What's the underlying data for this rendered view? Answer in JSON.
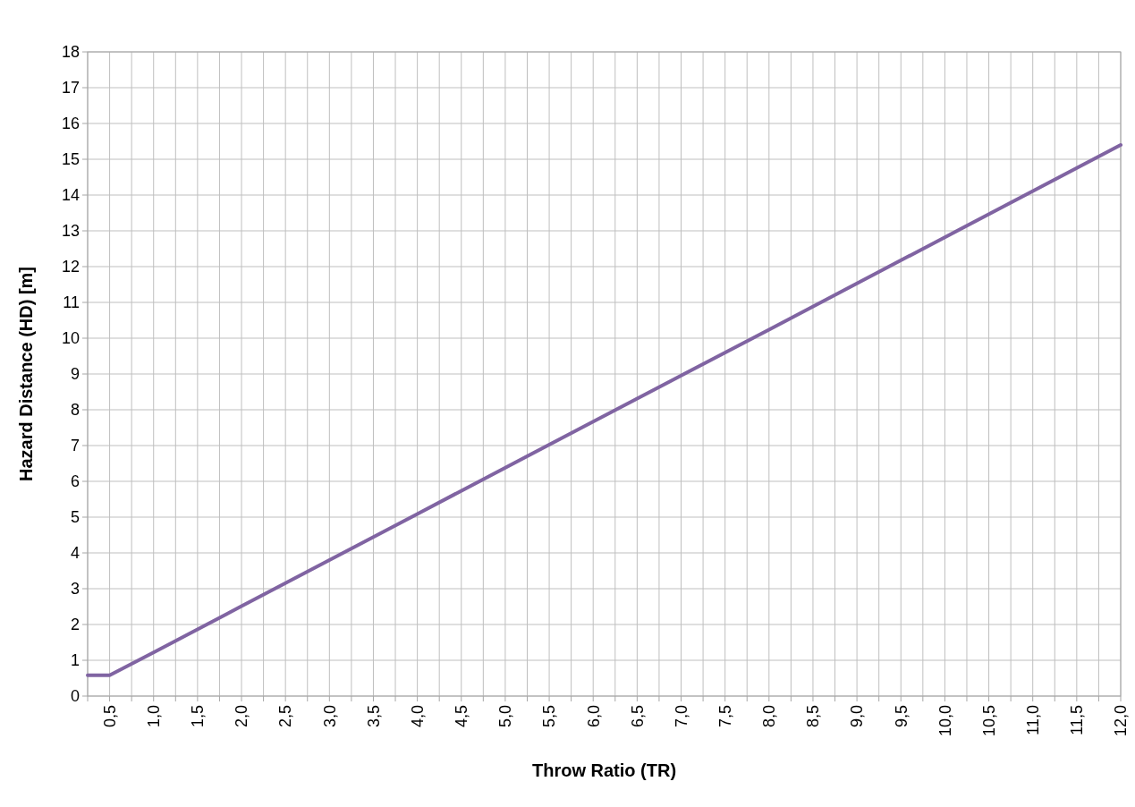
{
  "chart_data": {
    "type": "line",
    "xlabel": "Throw Ratio (TR)",
    "ylabel": "Hazard Distance (HD)  [m]",
    "x": [
      0.25,
      0.5,
      1,
      2,
      4,
      6,
      8,
      10,
      12
    ],
    "series": [
      {
        "color": "#8064a2",
        "values": [
          0.58,
          0.58,
          1.22,
          2.51,
          5.09,
          7.67,
          10.24,
          12.82,
          15.4
        ]
      }
    ],
    "xlim": [
      0.25,
      12
    ],
    "xticks": [
      {
        "value": 0.25,
        "label": null
      },
      {
        "value": 0.5,
        "label": "0,5"
      },
      {
        "value": 0.75,
        "label": null
      },
      {
        "value": 1,
        "label": "1,0"
      },
      {
        "value": 1.25,
        "label": null
      },
      {
        "value": 1.5,
        "label": "1,5"
      },
      {
        "value": 1.75,
        "label": null
      },
      {
        "value": 2,
        "label": "2,0"
      },
      {
        "value": 2.25,
        "label": null
      },
      {
        "value": 2.5,
        "label": "2,5"
      },
      {
        "value": 2.75,
        "label": null
      },
      {
        "value": 3,
        "label": "3,0"
      },
      {
        "value": 3.25,
        "label": null
      },
      {
        "value": 3.5,
        "label": "3,5"
      },
      {
        "value": 3.75,
        "label": null
      },
      {
        "value": 4,
        "label": "4,0"
      },
      {
        "value": 4.25,
        "label": null
      },
      {
        "value": 4.5,
        "label": "4,5"
      },
      {
        "value": 4.75,
        "label": null
      },
      {
        "value": 5,
        "label": "5,0"
      },
      {
        "value": 5.25,
        "label": null
      },
      {
        "value": 5.5,
        "label": "5,5"
      },
      {
        "value": 5.75,
        "label": null
      },
      {
        "value": 6,
        "label": "6,0"
      },
      {
        "value": 6.25,
        "label": null
      },
      {
        "value": 6.5,
        "label": "6,5"
      },
      {
        "value": 6.75,
        "label": null
      },
      {
        "value": 7,
        "label": "7,0"
      },
      {
        "value": 7.25,
        "label": null
      },
      {
        "value": 7.5,
        "label": "7,5"
      },
      {
        "value": 7.75,
        "label": null
      },
      {
        "value": 8,
        "label": "8,0"
      },
      {
        "value": 8.25,
        "label": null
      },
      {
        "value": 8.5,
        "label": "8,5"
      },
      {
        "value": 8.75,
        "label": null
      },
      {
        "value": 9,
        "label": "9,0"
      },
      {
        "value": 9.25,
        "label": null
      },
      {
        "value": 9.5,
        "label": "9,5"
      },
      {
        "value": 9.75,
        "label": null
      },
      {
        "value": 10,
        "label": "10,0"
      },
      {
        "value": 10.25,
        "label": null
      },
      {
        "value": 10.5,
        "label": "10,5"
      },
      {
        "value": 10.75,
        "label": null
      },
      {
        "value": 11,
        "label": "11,0"
      },
      {
        "value": 11.25,
        "label": null
      },
      {
        "value": 11.5,
        "label": "11,5"
      },
      {
        "value": 11.75,
        "label": null
      },
      {
        "value": 12,
        "label": "12,0"
      }
    ],
    "ylim": [
      0,
      18
    ],
    "yticks": [
      0,
      1,
      2,
      3,
      4,
      5,
      6,
      7,
      8,
      9,
      10,
      11,
      12,
      13,
      14,
      15,
      16,
      17,
      18
    ],
    "grid": true,
    "marker": "none",
    "line_style": "solid"
  }
}
